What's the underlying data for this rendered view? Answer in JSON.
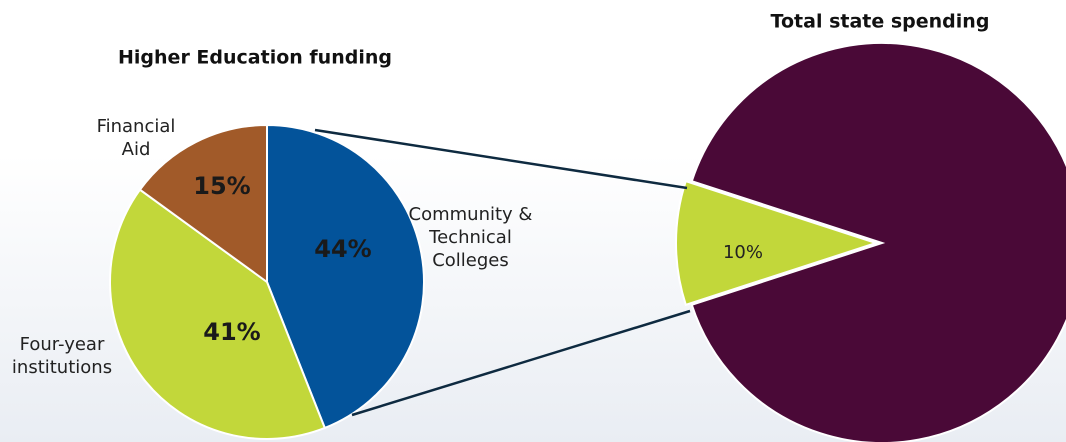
{
  "chart_data": [
    {
      "type": "pie",
      "title": "Higher Education funding",
      "categories": [
        "Community & Technical Colleges",
        "Four-year institutions",
        "Financial Aid"
      ],
      "values": [
        44,
        41,
        15
      ],
      "value_labels": [
        "44%",
        "41%",
        "15%"
      ],
      "colors": [
        "#03539a",
        "#c2d73a",
        "#a15a29"
      ]
    },
    {
      "type": "pie",
      "title": "Total state spending",
      "values": [
        10,
        90
      ],
      "value_labels": [
        "10%",
        null
      ],
      "colors": [
        "#c2d73a",
        "#4a0937"
      ]
    }
  ]
}
